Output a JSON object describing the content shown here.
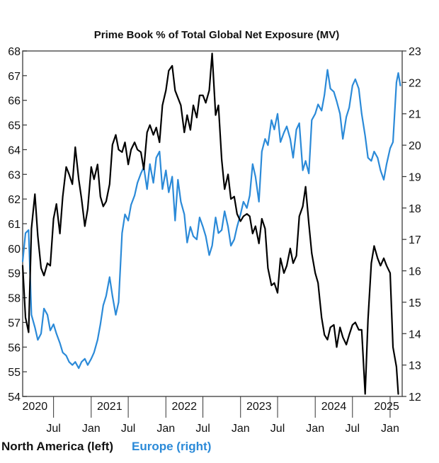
{
  "chart_data": {
    "type": "line",
    "title": "Prime Book % of Total Global Net Exposure (MV)",
    "xlabel": "",
    "ylabel": "",
    "y_left": {
      "min": 54,
      "max": 68,
      "ticks": [
        54,
        55,
        56,
        57,
        58,
        59,
        60,
        61,
        62,
        63,
        64,
        65,
        66,
        67,
        68
      ],
      "tick_labels": [
        "54",
        "55",
        "56",
        "57",
        "58",
        "59",
        "60",
        "61",
        "62",
        "63",
        "64",
        "65",
        "66",
        "67",
        "68"
      ]
    },
    "y_right": {
      "min": 12,
      "max": 23,
      "ticks": [
        12,
        13,
        14,
        15,
        16,
        17,
        18,
        19,
        20,
        21,
        22,
        23
      ],
      "tick_labels": [
        "12",
        "13",
        "14",
        "15",
        "16",
        "17",
        "18",
        "19",
        "20",
        "21",
        "22",
        "23"
      ]
    },
    "x_range": [
      "2020-02-01",
      "2025-03-01"
    ],
    "x_month_ticks": [
      {
        "date": "2020-07-01",
        "label": "Jul"
      },
      {
        "date": "2021-01-01",
        "label": "Jan"
      },
      {
        "date": "2021-07-01",
        "label": "Jul"
      },
      {
        "date": "2022-01-01",
        "label": "Jan"
      },
      {
        "date": "2022-07-01",
        "label": "Jul"
      },
      {
        "date": "2023-01-01",
        "label": "Jan"
      },
      {
        "date": "2023-07-01",
        "label": "Jul"
      },
      {
        "date": "2024-01-01",
        "label": "Jan"
      },
      {
        "date": "2024-07-01",
        "label": "Jul"
      },
      {
        "date": "2025-01-01",
        "label": "Jan"
      }
    ],
    "x_year_labels": [
      {
        "date": "2020-04-01",
        "label": "2020"
      },
      {
        "date": "2021-04-01",
        "label": "2021"
      },
      {
        "date": "2022-04-01",
        "label": "2022"
      },
      {
        "date": "2023-04-01",
        "label": "2023"
      },
      {
        "date": "2024-04-01",
        "label": "2024"
      },
      {
        "date": "2025-03-01",
        "label": "2025"
      }
    ],
    "grid": false,
    "legend_position": "bottom-left",
    "series": [
      {
        "name": "North America (left)",
        "axis": "left",
        "color": "#000000",
        "points": [
          [
            "2020-02-01",
            59.3
          ],
          [
            "2020-02-15",
            57.2
          ],
          [
            "2020-03-01",
            56.6
          ],
          [
            "2020-03-15",
            60.8
          ],
          [
            "2020-04-01",
            62.2
          ],
          [
            "2020-04-15",
            60.5
          ],
          [
            "2020-05-01",
            59.2
          ],
          [
            "2020-05-15",
            58.9
          ],
          [
            "2020-06-01",
            59.4
          ],
          [
            "2020-06-15",
            59.3
          ],
          [
            "2020-07-01",
            61.2
          ],
          [
            "2020-07-15",
            61.8
          ],
          [
            "2020-08-01",
            60.6
          ],
          [
            "2020-08-15",
            62.1
          ],
          [
            "2020-09-01",
            63.3
          ],
          [
            "2020-09-15",
            63.0
          ],
          [
            "2020-10-01",
            62.6
          ],
          [
            "2020-10-15",
            64.1
          ],
          [
            "2020-11-01",
            62.8
          ],
          [
            "2020-11-15",
            62.0
          ],
          [
            "2020-12-01",
            60.9
          ],
          [
            "2020-12-15",
            61.6
          ],
          [
            "2021-01-01",
            63.3
          ],
          [
            "2021-01-15",
            62.8
          ],
          [
            "2021-02-01",
            63.4
          ],
          [
            "2021-02-15",
            62.1
          ],
          [
            "2021-03-01",
            61.7
          ],
          [
            "2021-03-15",
            61.9
          ],
          [
            "2021-04-01",
            62.6
          ],
          [
            "2021-04-15",
            64.2
          ],
          [
            "2021-05-01",
            64.6
          ],
          [
            "2021-05-15",
            64.0
          ],
          [
            "2021-06-01",
            63.9
          ],
          [
            "2021-06-15",
            64.3
          ],
          [
            "2021-07-01",
            63.4
          ],
          [
            "2021-07-15",
            64.0
          ],
          [
            "2021-08-01",
            64.3
          ],
          [
            "2021-08-15",
            64.0
          ],
          [
            "2021-09-01",
            63.9
          ],
          [
            "2021-09-15",
            63.2
          ],
          [
            "2021-10-01",
            64.7
          ],
          [
            "2021-10-15",
            65.0
          ],
          [
            "2021-11-01",
            64.6
          ],
          [
            "2021-11-15",
            64.9
          ],
          [
            "2021-12-01",
            64.3
          ],
          [
            "2021-12-15",
            65.8
          ],
          [
            "2022-01-01",
            66.4
          ],
          [
            "2022-01-15",
            67.2
          ],
          [
            "2022-02-01",
            67.4
          ],
          [
            "2022-02-15",
            66.4
          ],
          [
            "2022-03-01",
            66.1
          ],
          [
            "2022-03-15",
            65.8
          ],
          [
            "2022-04-01",
            64.7
          ],
          [
            "2022-04-15",
            65.4
          ],
          [
            "2022-05-01",
            64.8
          ],
          [
            "2022-05-15",
            65.8
          ],
          [
            "2022-06-01",
            65.3
          ],
          [
            "2022-06-15",
            66.2
          ],
          [
            "2022-07-01",
            66.2
          ],
          [
            "2022-07-15",
            65.9
          ],
          [
            "2022-08-01",
            66.4
          ],
          [
            "2022-08-15",
            67.9
          ],
          [
            "2022-09-01",
            65.4
          ],
          [
            "2022-09-15",
            65.8
          ],
          [
            "2022-10-01",
            63.6
          ],
          [
            "2022-10-15",
            62.4
          ],
          [
            "2022-11-01",
            63.0
          ],
          [
            "2022-11-15",
            62.0
          ],
          [
            "2022-12-01",
            62.1
          ],
          [
            "2022-12-15",
            61.4
          ],
          [
            "2023-01-01",
            61.1
          ],
          [
            "2023-01-15",
            61.3
          ],
          [
            "2023-02-01",
            61.4
          ],
          [
            "2023-02-15",
            61.3
          ],
          [
            "2023-03-01",
            60.6
          ],
          [
            "2023-03-15",
            60.9
          ],
          [
            "2023-04-01",
            60.2
          ],
          [
            "2023-04-15",
            61.2
          ],
          [
            "2023-05-01",
            60.8
          ],
          [
            "2023-05-15",
            59.2
          ],
          [
            "2023-06-01",
            58.5
          ],
          [
            "2023-06-15",
            58.6
          ],
          [
            "2023-07-01",
            58.2
          ],
          [
            "2023-07-15",
            59.6
          ],
          [
            "2023-08-01",
            59.0
          ],
          [
            "2023-08-15",
            59.3
          ],
          [
            "2023-09-01",
            60.0
          ],
          [
            "2023-09-15",
            59.4
          ],
          [
            "2023-10-01",
            59.7
          ],
          [
            "2023-10-15",
            61.3
          ],
          [
            "2023-11-01",
            61.7
          ],
          [
            "2023-11-15",
            62.5
          ],
          [
            "2023-12-01",
            61.0
          ],
          [
            "2023-12-15",
            59.8
          ],
          [
            "2024-01-01",
            59.0
          ],
          [
            "2024-01-15",
            58.6
          ],
          [
            "2024-02-01",
            57.2
          ],
          [
            "2024-02-15",
            56.5
          ],
          [
            "2024-03-01",
            56.3
          ],
          [
            "2024-03-15",
            56.8
          ],
          [
            "2024-04-01",
            56.9
          ],
          [
            "2024-04-15",
            56.0
          ],
          [
            "2024-05-01",
            56.8
          ],
          [
            "2024-05-15",
            56.4
          ],
          [
            "2024-06-01",
            56.1
          ],
          [
            "2024-06-15",
            56.5
          ],
          [
            "2024-07-01",
            56.9
          ],
          [
            "2024-07-15",
            57.0
          ],
          [
            "2024-08-01",
            56.7
          ],
          [
            "2024-08-15",
            56.7
          ],
          [
            "2024-09-01",
            54.1
          ],
          [
            "2024-09-15",
            57.1
          ],
          [
            "2024-10-01",
            59.4
          ],
          [
            "2024-10-15",
            60.1
          ],
          [
            "2024-11-01",
            59.6
          ],
          [
            "2024-11-15",
            59.3
          ],
          [
            "2024-12-01",
            59.6
          ],
          [
            "2024-12-15",
            59.3
          ],
          [
            "2025-01-01",
            59.0
          ],
          [
            "2025-01-15",
            56.0
          ],
          [
            "2025-02-01",
            55.2
          ],
          [
            "2025-02-10",
            54.1
          ]
        ]
      },
      {
        "name": "Europe (right)",
        "axis": "right",
        "color": "#2b8ad8",
        "points": [
          [
            "2020-02-01",
            16.3
          ],
          [
            "2020-02-15",
            17.2
          ],
          [
            "2020-03-01",
            17.3
          ],
          [
            "2020-03-15",
            14.6
          ],
          [
            "2020-04-01",
            14.2
          ],
          [
            "2020-04-15",
            13.8
          ],
          [
            "2020-05-01",
            14.0
          ],
          [
            "2020-05-15",
            14.8
          ],
          [
            "2020-06-01",
            14.6
          ],
          [
            "2020-06-15",
            14.1
          ],
          [
            "2020-07-01",
            14.3
          ],
          [
            "2020-07-15",
            14.0
          ],
          [
            "2020-08-01",
            13.7
          ],
          [
            "2020-08-15",
            13.4
          ],
          [
            "2020-09-01",
            13.3
          ],
          [
            "2020-09-15",
            13.1
          ],
          [
            "2020-10-01",
            13.0
          ],
          [
            "2020-10-15",
            13.1
          ],
          [
            "2020-11-01",
            12.9
          ],
          [
            "2020-11-15",
            13.1
          ],
          [
            "2020-12-01",
            13.2
          ],
          [
            "2020-12-15",
            13.0
          ],
          [
            "2021-01-01",
            13.2
          ],
          [
            "2021-01-15",
            13.4
          ],
          [
            "2021-02-01",
            13.8
          ],
          [
            "2021-02-15",
            14.3
          ],
          [
            "2021-03-01",
            14.9
          ],
          [
            "2021-03-15",
            15.2
          ],
          [
            "2021-04-01",
            15.8
          ],
          [
            "2021-04-15",
            15.2
          ],
          [
            "2021-05-01",
            14.6
          ],
          [
            "2021-05-15",
            15.0
          ],
          [
            "2021-06-01",
            17.2
          ],
          [
            "2021-06-15",
            17.8
          ],
          [
            "2021-07-01",
            17.6
          ],
          [
            "2021-07-15",
            18.1
          ],
          [
            "2021-08-01",
            18.4
          ],
          [
            "2021-08-15",
            18.8
          ],
          [
            "2021-09-01",
            19.1
          ],
          [
            "2021-09-15",
            19.3
          ],
          [
            "2021-10-01",
            18.6
          ],
          [
            "2021-10-15",
            19.4
          ],
          [
            "2021-11-01",
            18.8
          ],
          [
            "2021-11-15",
            19.6
          ],
          [
            "2021-12-01",
            19.8
          ],
          [
            "2021-12-15",
            18.6
          ],
          [
            "2022-01-01",
            19.2
          ],
          [
            "2022-01-15",
            18.5
          ],
          [
            "2022-02-01",
            19.0
          ],
          [
            "2022-02-15",
            17.6
          ],
          [
            "2022-03-01",
            18.9
          ],
          [
            "2022-03-15",
            18.2
          ],
          [
            "2022-04-01",
            17.8
          ],
          [
            "2022-04-15",
            16.9
          ],
          [
            "2022-05-01",
            17.4
          ],
          [
            "2022-05-15",
            17.1
          ],
          [
            "2022-06-01",
            17.0
          ],
          [
            "2022-06-15",
            17.7
          ],
          [
            "2022-07-01",
            17.4
          ],
          [
            "2022-07-15",
            17.1
          ],
          [
            "2022-08-01",
            16.5
          ],
          [
            "2022-08-15",
            16.8
          ],
          [
            "2022-09-01",
            17.7
          ],
          [
            "2022-09-15",
            17.2
          ],
          [
            "2022-10-01",
            17.3
          ],
          [
            "2022-10-15",
            17.9
          ],
          [
            "2022-11-01",
            17.4
          ],
          [
            "2022-11-15",
            16.8
          ],
          [
            "2022-12-01",
            17.0
          ],
          [
            "2022-12-15",
            17.4
          ],
          [
            "2023-01-01",
            17.8
          ],
          [
            "2023-01-15",
            18.2
          ],
          [
            "2023-02-01",
            18.0
          ],
          [
            "2023-02-15",
            18.4
          ],
          [
            "2023-03-01",
            19.4
          ],
          [
            "2023-03-15",
            19.0
          ],
          [
            "2023-04-01",
            18.2
          ],
          [
            "2023-04-15",
            19.8
          ],
          [
            "2023-05-01",
            20.2
          ],
          [
            "2023-05-15",
            20.0
          ],
          [
            "2023-06-01",
            20.8
          ],
          [
            "2023-06-15",
            20.5
          ],
          [
            "2023-07-01",
            21.0
          ],
          [
            "2023-07-15",
            20.1
          ],
          [
            "2023-08-01",
            20.4
          ],
          [
            "2023-08-15",
            20.6
          ],
          [
            "2023-09-01",
            20.2
          ],
          [
            "2023-09-15",
            19.6
          ],
          [
            "2023-10-01",
            20.5
          ],
          [
            "2023-10-15",
            20.7
          ],
          [
            "2023-11-01",
            19.2
          ],
          [
            "2023-11-15",
            19.5
          ],
          [
            "2023-12-01",
            19.1
          ],
          [
            "2023-12-15",
            20.8
          ],
          [
            "2024-01-01",
            21.0
          ],
          [
            "2024-01-15",
            21.3
          ],
          [
            "2024-02-01",
            21.1
          ],
          [
            "2024-02-15",
            21.6
          ],
          [
            "2024-03-01",
            22.4
          ],
          [
            "2024-03-15",
            21.8
          ],
          [
            "2024-04-01",
            21.7
          ],
          [
            "2024-04-15",
            21.4
          ],
          [
            "2024-05-01",
            21.0
          ],
          [
            "2024-05-15",
            20.2
          ],
          [
            "2024-06-01",
            20.9
          ],
          [
            "2024-06-15",
            21.2
          ],
          [
            "2024-07-01",
            21.9
          ],
          [
            "2024-07-15",
            22.1
          ],
          [
            "2024-08-01",
            21.8
          ],
          [
            "2024-08-15",
            21.0
          ],
          [
            "2024-09-01",
            20.3
          ],
          [
            "2024-09-15",
            19.6
          ],
          [
            "2024-10-01",
            19.5
          ],
          [
            "2024-10-15",
            19.8
          ],
          [
            "2024-11-01",
            19.6
          ],
          [
            "2024-11-15",
            19.2
          ],
          [
            "2024-12-01",
            18.9
          ],
          [
            "2024-12-15",
            19.4
          ],
          [
            "2025-01-01",
            19.9
          ],
          [
            "2025-01-15",
            20.1
          ],
          [
            "2025-02-01",
            22.0
          ],
          [
            "2025-02-10",
            22.3
          ],
          [
            "2025-02-20",
            21.9
          ]
        ]
      }
    ]
  }
}
